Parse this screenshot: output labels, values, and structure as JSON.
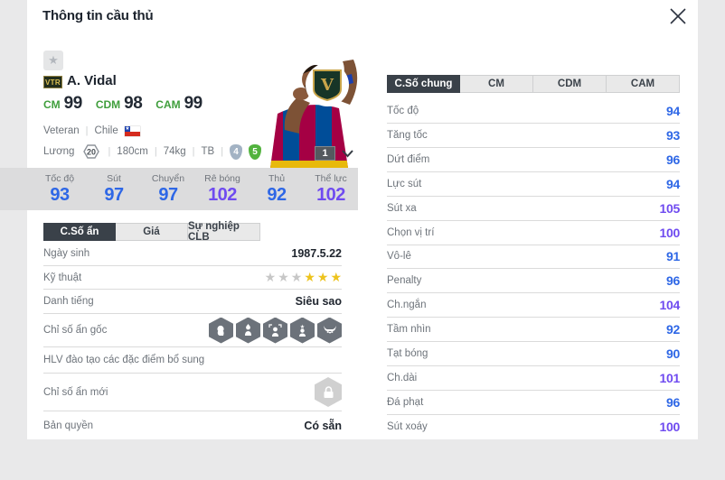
{
  "header": {
    "title": "Thông tin cầu thủ"
  },
  "player": {
    "grade_badge": "VTR",
    "name": "A. Vidal",
    "positions": [
      {
        "pos": "CM",
        "rating": "99"
      },
      {
        "pos": "CDM",
        "rating": "98"
      },
      {
        "pos": "CAM",
        "rating": "99"
      }
    ],
    "class": "Veteran",
    "nation": "Chile",
    "salary_label": "Lương",
    "salary": "20",
    "height": "180cm",
    "weight": "74kg",
    "body_type": "TB",
    "foot_left": "4",
    "foot_right": "5",
    "level": "1",
    "team_badge_letter": "V"
  },
  "main_stats": [
    {
      "label": "Tốc độ",
      "value": 93
    },
    {
      "label": "Sút",
      "value": 97
    },
    {
      "label": "Chuyển",
      "value": 97
    },
    {
      "label": "Rê bóng",
      "value": 102
    },
    {
      "label": "Thủ",
      "value": 92
    },
    {
      "label": "Thể lực",
      "value": 102
    }
  ],
  "left_section": {
    "tabs": [
      {
        "label": "C.Số ẩn",
        "active": true
      },
      {
        "label": "Giá",
        "active": false
      },
      {
        "label": "Sự nghiệp CLB",
        "active": false
      }
    ],
    "rows": {
      "birth": {
        "label": "Ngày sinh",
        "value": "1987.5.22"
      },
      "skill": {
        "label": "Kỹ thuật",
        "stars": [
          "empty",
          "empty",
          "empty",
          "filled",
          "filled",
          "filled"
        ]
      },
      "fame": {
        "label": "Danh tiếng",
        "value": "Siêu sao"
      },
      "traits_origin": {
        "label": "Chỉ số ẩn gốc",
        "icons": [
          "head",
          "person-up",
          "person-frame",
          "person-star",
          "bull"
        ]
      },
      "coach": {
        "label": "HLV đào tạo các đặc điểm bổ sung"
      },
      "traits_new": {
        "label": "Chỉ số ẩn mới",
        "locked": true
      },
      "license": {
        "label": "Bản quyền",
        "value": "Có sẵn"
      }
    }
  },
  "right_section": {
    "tabs": [
      {
        "label": "C.Số chung",
        "active": true
      },
      {
        "label": "CM",
        "active": false
      },
      {
        "label": "CDM",
        "active": false
      },
      {
        "label": "CAM",
        "active": false
      }
    ],
    "stats": [
      {
        "label": "Tốc độ",
        "value": 94
      },
      {
        "label": "Tăng tốc",
        "value": 93
      },
      {
        "label": "Dứt điểm",
        "value": 96
      },
      {
        "label": "Lực sút",
        "value": 94
      },
      {
        "label": "Sút xa",
        "value": 105
      },
      {
        "label": "Chọn vị trí",
        "value": 100
      },
      {
        "label": "Vô-lê",
        "value": 91
      },
      {
        "label": "Penalty",
        "value": 96
      },
      {
        "label": "Ch.ngắn",
        "value": 104
      },
      {
        "label": "Tầm nhìn",
        "value": 92
      },
      {
        "label": "Tạt bóng",
        "value": 90
      },
      {
        "label": "Ch.dài",
        "value": 101
      },
      {
        "label": "Đá phạt",
        "value": 96
      },
      {
        "label": "Sút xoáy",
        "value": 100
      }
    ]
  },
  "colors": {
    "stat_blue": "#2e67e6",
    "stat_purple": "#6f4bf0",
    "position_green": "#3f9e3c",
    "active_tab": "#3a4149"
  }
}
